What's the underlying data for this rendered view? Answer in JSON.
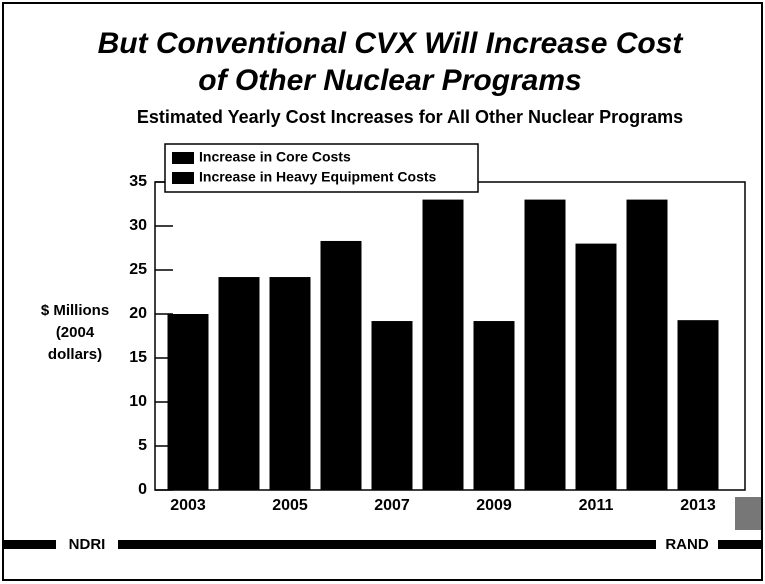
{
  "chart_data": {
    "type": "bar",
    "title": [
      "But Conventional CVX Will Increase Cost",
      "of Other Nuclear Programs"
    ],
    "subtitle": "Estimated Yearly Cost Increases for All Other Nuclear Programs",
    "ylabel": [
      "$ Millions",
      "(2004",
      "dollars)"
    ],
    "legend": [
      {
        "name": "Increase in Core Costs",
        "color": "#000000"
      },
      {
        "name": "Increase in Heavy Equipment Costs",
        "color": "#000000"
      }
    ],
    "categories": [
      "2003",
      null,
      "2005",
      null,
      "2007",
      null,
      "2009",
      null,
      "2011",
      null,
      "2013"
    ],
    "values": [
      20,
      24.2,
      24.2,
      28.3,
      19.2,
      33,
      19.2,
      33,
      28,
      33,
      19.3
    ],
    "color": "#000000",
    "ylim": [
      0,
      35
    ],
    "yticks": [
      0,
      5,
      10,
      15,
      20,
      25,
      30,
      35
    ],
    "footer_left": "NDRI",
    "footer_right": "RAND"
  }
}
